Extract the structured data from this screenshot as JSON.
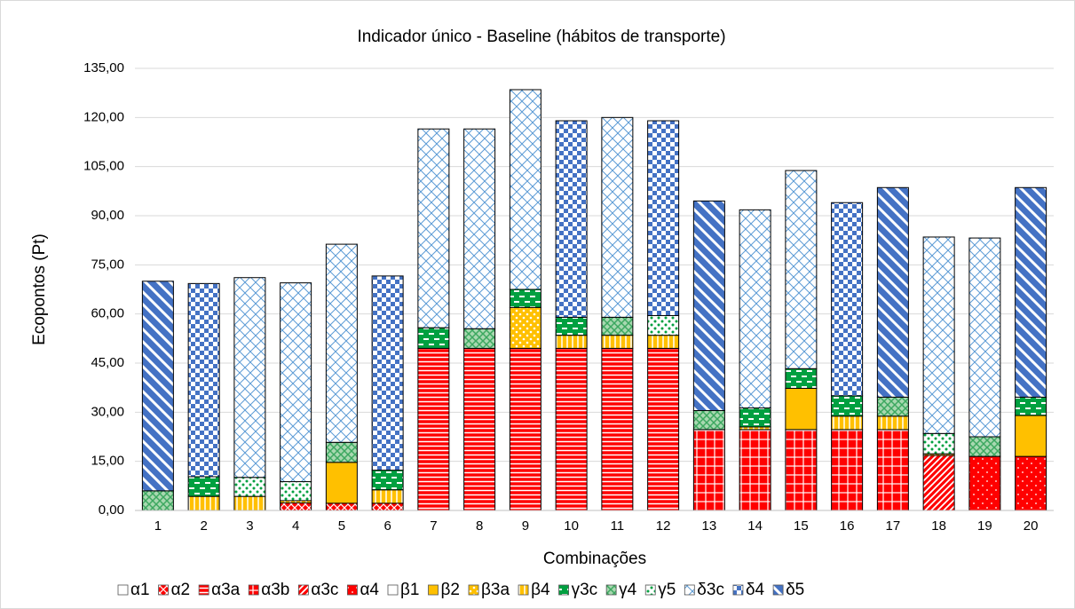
{
  "chart_data": {
    "type": "stacked_bar",
    "title": "Indicador único - Baseline (hábitos de transporte)",
    "y_label": "Ecopontos (Pt)",
    "x_label": "Combinações",
    "categories": [
      "1",
      "2",
      "3",
      "4",
      "5",
      "6",
      "7",
      "8",
      "9",
      "10",
      "11",
      "12",
      "13",
      "14",
      "15",
      "16",
      "17",
      "18",
      "19",
      "20"
    ],
    "ylim": [
      0,
      135
    ],
    "yticks": [
      {
        "value": 0,
        "label": "0,00"
      },
      {
        "value": 15,
        "label": "15,00"
      },
      {
        "value": 30,
        "label": "30,00"
      },
      {
        "value": 45,
        "label": "45,00"
      },
      {
        "value": 60,
        "label": "60,00"
      },
      {
        "value": 75,
        "label": "75,00"
      },
      {
        "value": 90,
        "label": "90,00"
      },
      {
        "value": 105,
        "label": "105,00"
      },
      {
        "value": 120,
        "label": "120,00"
      },
      {
        "value": 135,
        "label": "135,00"
      }
    ],
    "grid": true,
    "legend": "bottom",
    "series": [
      {
        "name": "α1",
        "color": "#ffffff",
        "pattern": "none",
        "values": [
          null,
          null,
          null,
          null,
          null,
          null,
          null,
          null,
          null,
          null,
          null,
          null,
          null,
          null,
          null,
          null,
          null,
          null,
          null,
          null
        ]
      },
      {
        "name": "α2",
        "color": "#ff0000",
        "pattern": "crosshatch",
        "values": [
          null,
          null,
          null,
          2.3,
          2.2,
          2.2,
          null,
          null,
          null,
          null,
          null,
          null,
          null,
          null,
          null,
          null,
          null,
          null,
          null,
          null
        ]
      },
      {
        "name": "α3a",
        "color": "#ff0000",
        "pattern": "hlines",
        "values": [
          null,
          null,
          null,
          null,
          null,
          null,
          49.5,
          49.5,
          49.5,
          49.5,
          49.5,
          49.5,
          null,
          null,
          null,
          null,
          null,
          null,
          null,
          null
        ]
      },
      {
        "name": "α3b",
        "color": "#ff0000",
        "pattern": "grid",
        "values": [
          null,
          null,
          null,
          null,
          null,
          null,
          null,
          null,
          null,
          null,
          null,
          null,
          24.7,
          24.7,
          24.7,
          24.7,
          24.7,
          null,
          null,
          null
        ]
      },
      {
        "name": "α3c",
        "color": "#ff0000",
        "pattern": "diag",
        "values": [
          null,
          null,
          null,
          null,
          null,
          null,
          null,
          null,
          null,
          null,
          null,
          null,
          null,
          null,
          null,
          null,
          null,
          16.8,
          null,
          null
        ]
      },
      {
        "name": "α4",
        "color": "#ff0000",
        "pattern": "dots",
        "values": [
          null,
          null,
          null,
          null,
          null,
          null,
          null,
          null,
          null,
          null,
          null,
          null,
          null,
          null,
          null,
          null,
          null,
          null,
          16.5,
          16.5
        ]
      },
      {
        "name": "β1",
        "color": "#ffffff",
        "pattern": "none",
        "values": [
          null,
          null,
          null,
          null,
          null,
          null,
          null,
          null,
          null,
          null,
          null,
          null,
          null,
          null,
          null,
          null,
          null,
          null,
          null,
          null
        ]
      },
      {
        "name": "β2",
        "color": "#ffc000",
        "pattern": "solid",
        "values": [
          null,
          null,
          null,
          null,
          12.5,
          null,
          null,
          null,
          null,
          null,
          null,
          null,
          null,
          null,
          12.6,
          null,
          null,
          null,
          null,
          12.5
        ]
      },
      {
        "name": "β3a",
        "color": "#ffc000",
        "pattern": "bigdots",
        "values": [
          null,
          null,
          null,
          null,
          null,
          null,
          null,
          null,
          12.5,
          null,
          null,
          null,
          null,
          null,
          null,
          null,
          null,
          null,
          null,
          null
        ]
      },
      {
        "name": "β4",
        "color": "#ffc000",
        "pattern": "vlines",
        "values": [
          null,
          4.3,
          4.3,
          0.7,
          null,
          4.1,
          null,
          null,
          null,
          4,
          4,
          4,
          null,
          0.8,
          null,
          4.1,
          4.1,
          0.5,
          null,
          null
        ]
      },
      {
        "name": "γ3c",
        "color": "#00a040",
        "pattern": "dash",
        "values": [
          null,
          6,
          null,
          null,
          null,
          6,
          6.3,
          null,
          5.5,
          5.5,
          null,
          null,
          null,
          5.8,
          6,
          6.2,
          null,
          null,
          null,
          5.6
        ]
      },
      {
        "name": "γ4",
        "color": "#3ca860",
        "pattern": "cross",
        "values": [
          6,
          null,
          null,
          null,
          6.1,
          null,
          null,
          6,
          null,
          null,
          5.5,
          null,
          5.8,
          null,
          null,
          null,
          5.8,
          null,
          6,
          null
        ]
      },
      {
        "name": "γ5",
        "color": "#00a040",
        "pattern": "greendots",
        "values": [
          null,
          null,
          5.8,
          5.8,
          null,
          null,
          null,
          null,
          null,
          null,
          null,
          6,
          null,
          null,
          null,
          null,
          null,
          6.2,
          null,
          null
        ]
      },
      {
        "name": "δ3c",
        "color": "#5b9bd5",
        "pattern": "zig",
        "values": [
          null,
          null,
          61,
          60.7,
          60.5,
          null,
          60.7,
          61,
          61,
          null,
          61,
          null,
          null,
          60.5,
          60.5,
          null,
          null,
          60,
          60.7,
          null
        ]
      },
      {
        "name": "δ4",
        "color": "#4472c4",
        "pattern": "check",
        "values": [
          null,
          59,
          null,
          null,
          null,
          59.3,
          null,
          null,
          null,
          60,
          null,
          59.5,
          null,
          null,
          null,
          59,
          null,
          null,
          null,
          null
        ]
      },
      {
        "name": "δ5",
        "color": "#4472c4",
        "pattern": "wdiag",
        "values": [
          64,
          null,
          null,
          null,
          null,
          null,
          null,
          null,
          null,
          null,
          null,
          null,
          64,
          null,
          null,
          null,
          64,
          null,
          null,
          64
        ]
      }
    ]
  }
}
